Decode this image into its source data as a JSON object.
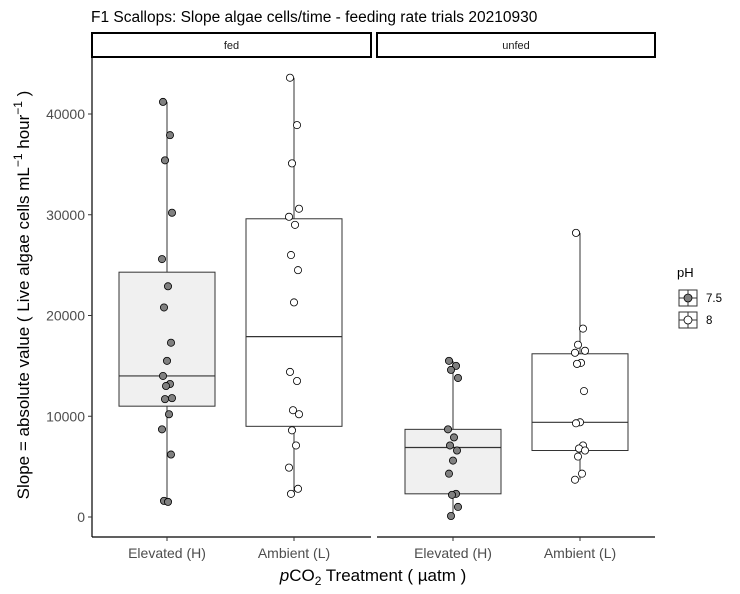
{
  "chart_data": {
    "type": "boxplot",
    "title": "F1 Scallops: Slope algae cells/time - feeding rate trials 20210930",
    "ylabel": {
      "main": "Slope = absolute value ( Live algae cells mL",
      "sup1": "−1",
      "mid": " hour",
      "sup2": "−1",
      "end": " )"
    },
    "xlabel": {
      "italic": "p",
      "main": "CO",
      "sub": "2",
      "end": " Treatment ( µatm )"
    },
    "ylim": [
      -2000,
      45000
    ],
    "yticks": [
      0,
      10000,
      20000,
      30000,
      40000
    ],
    "ytick_labels": [
      "0",
      "10000",
      "20000",
      "30000",
      "40000"
    ],
    "legend": {
      "title": "pH",
      "placement": "right",
      "entries": [
        {
          "label": "7.5",
          "fill": "#808080"
        },
        {
          "label": "8",
          "fill": "#ffffff"
        }
      ]
    },
    "colors": {
      "elevated_box_fill": "#f0f0f0",
      "ambient_box_fill": "#ffffff",
      "ph75_point": "#808080",
      "ph8_point": "#ffffff"
    },
    "panels": [
      {
        "strip": "fed",
        "categories": [
          "Elevated (H)",
          "Ambient (L)"
        ],
        "groups": [
          {
            "category": "Elevated (H)",
            "pH": "7.5",
            "min": 1500,
            "q1": 11000,
            "median": 14000,
            "q3": 24300,
            "max": 41200,
            "points": [
              41200,
              37900,
              35400,
              30200,
              25600,
              22900,
              20800,
              17300,
              15500,
              14000,
              13200,
              13000,
              11800,
              11700,
              10200,
              8700,
              6200,
              1600,
              1500
            ]
          },
          {
            "category": "Ambient (L)",
            "pH": "8",
            "min": 2300,
            "q1": 9000,
            "median": 17900,
            "q3": 29600,
            "max": 43600,
            "points": [
              43600,
              38900,
              35100,
              30600,
              29800,
              29000,
              26000,
              24500,
              21300,
              14400,
              13500,
              10600,
              10200,
              8600,
              7100,
              4900,
              2800,
              2300
            ]
          }
        ]
      },
      {
        "strip": "unfed",
        "categories": [
          "Elevated (H)",
          "Ambient (L)"
        ],
        "groups": [
          {
            "category": "Elevated (H)",
            "pH": "7.5",
            "min": 100,
            "q1": 2300,
            "median": 6900,
            "q3": 8700,
            "max": 15500,
            "points": [
              15500,
              15000,
              14600,
              13800,
              8700,
              7900,
              7100,
              6600,
              5600,
              4300,
              2300,
              2200,
              1000,
              100
            ]
          },
          {
            "category": "Ambient (L)",
            "pH": "8",
            "min": 3700,
            "q1": 6600,
            "median": 9400,
            "q3": 16200,
            "max": 28200,
            "points": [
              28200,
              18700,
              17100,
              16500,
              16300,
              15300,
              15200,
              12500,
              9400,
              9300,
              7100,
              6800,
              6600,
              6000,
              4300,
              3700
            ]
          }
        ]
      }
    ]
  }
}
